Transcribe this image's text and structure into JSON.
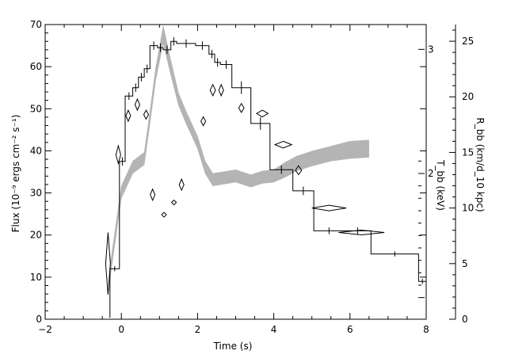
{
  "chart_data": {
    "type": "line",
    "title": "",
    "xlabel": "Time (s)",
    "ylabel": "Flux (10⁻⁹ ergs cm⁻² s⁻¹)",
    "y2label": "T_bb (keV)",
    "y3label": "R_bb (km/d_10 kpc)",
    "xlim": [
      -2,
      8
    ],
    "ylim": [
      0,
      70
    ],
    "y2lim": [
      0.8,
      3.2
    ],
    "y3lim": [
      0,
      26.5
    ],
    "x_ticks": [
      -2,
      0,
      2,
      4,
      6,
      8
    ],
    "y_ticks": [
      0,
      10,
      20,
      30,
      40,
      50,
      60,
      70
    ],
    "y2_ticks": [
      1,
      2,
      3
    ],
    "y2_tick_labels": [
      "",
      "2",
      "3"
    ],
    "y3_ticks": [
      0,
      5,
      10,
      15,
      20,
      25
    ],
    "grid": false,
    "series": [
      {
        "style": "histogram",
        "color": "#000000",
        "bins": [
          {
            "x0": -0.3,
            "x1": -0.05,
            "y": 12.0,
            "err": 0.6
          },
          {
            "x0": -0.05,
            "x1": 0.1,
            "y": 37.5,
            "err": 1.0
          },
          {
            "x0": 0.1,
            "x1": 0.3,
            "y": 53.0,
            "err": 0.9
          },
          {
            "x0": 0.3,
            "x1": 0.45,
            "y": 55.0,
            "err": 1.0
          },
          {
            "x0": 0.45,
            "x1": 0.6,
            "y": 57.5,
            "err": 1.0
          },
          {
            "x0": 0.6,
            "x1": 0.75,
            "y": 59.5,
            "err": 1.0
          },
          {
            "x0": 0.75,
            "x1": 0.95,
            "y": 65.0,
            "err": 1.0
          },
          {
            "x0": 0.95,
            "x1": 1.1,
            "y": 64.5,
            "err": 1.0
          },
          {
            "x0": 1.1,
            "x1": 1.3,
            "y": 64.0,
            "err": 1.0
          },
          {
            "x0": 1.3,
            "x1": 1.45,
            "y": 66.0,
            "err": 1.0
          },
          {
            "x0": 1.45,
            "x1": 1.95,
            "y": 65.5,
            "err": 1.0
          },
          {
            "x0": 1.95,
            "x1": 2.3,
            "y": 65.0,
            "err": 1.0
          },
          {
            "x0": 2.3,
            "x1": 2.45,
            "y": 63.0,
            "err": 1.0
          },
          {
            "x0": 2.45,
            "x1": 2.6,
            "y": 61.0,
            "err": 1.0
          },
          {
            "x0": 2.6,
            "x1": 2.9,
            "y": 60.5,
            "err": 1.0
          },
          {
            "x0": 2.9,
            "x1": 3.4,
            "y": 55.0,
            "err": 1.5
          },
          {
            "x0": 3.4,
            "x1": 3.9,
            "y": 46.5,
            "err": 1.5
          },
          {
            "x0": 3.9,
            "x1": 4.5,
            "y": 35.5,
            "err": 1.0
          },
          {
            "x0": 4.5,
            "x1": 5.05,
            "y": 30.5,
            "err": 1.0
          },
          {
            "x0": 5.05,
            "x1": 5.85,
            "y": 21.0,
            "err": 0.8
          },
          {
            "x0": 5.85,
            "x1": 6.55,
            "y": 21.0,
            "err": 0.8
          },
          {
            "x0": 6.55,
            "x1": 7.8,
            "y": 15.5,
            "err": 0.6
          },
          {
            "x0": 7.8,
            "x1": 8.0,
            "y": 9.0,
            "err": 0.6
          }
        ],
        "lead_in": {
          "x": -0.32,
          "y": 0.5
        }
      },
      {
        "style": "band",
        "color": "#b4b4b4",
        "axis": "y2",
        "x": [
          -0.3,
          0.0,
          0.3,
          0.6,
          0.75,
          0.9,
          1.1,
          1.3,
          1.5,
          1.7,
          2.0,
          2.2,
          2.4,
          2.6,
          3.0,
          3.4,
          3.7,
          4.0,
          4.3,
          4.6,
          5.0,
          5.5,
          6.0,
          6.5
        ],
        "y": [
          1.2,
          1.85,
          2.05,
          2.12,
          2.45,
          2.8,
          3.12,
          2.85,
          2.6,
          2.45,
          2.25,
          2.05,
          1.95,
          1.96,
          1.98,
          1.94,
          1.97,
          1.98,
          2.03,
          2.08,
          2.12,
          2.16,
          2.19,
          2.2
        ],
        "width": [
          0.05,
          0.05,
          0.05,
          0.05,
          0.05,
          0.05,
          0.07,
          0.06,
          0.05,
          0.05,
          0.05,
          0.05,
          0.05,
          0.05,
          0.05,
          0.05,
          0.05,
          0.05,
          0.06,
          0.06,
          0.06,
          0.06,
          0.07,
          0.07
        ]
      },
      {
        "style": "diamonds",
        "color": "#000000",
        "axis": "y3",
        "points": [
          {
            "x": -0.35,
            "y": 5.0,
            "xerr": 0.05,
            "yerr": 2.8
          },
          {
            "x": -0.08,
            "y": 14.8,
            "xerr": 0.06,
            "yerr": 0.8
          },
          {
            "x": 0.18,
            "y": 18.3,
            "xerr": 0.05,
            "yerr": 0.5
          },
          {
            "x": 0.42,
            "y": 19.3,
            "xerr": 0.05,
            "yerr": 0.5
          },
          {
            "x": 0.65,
            "y": 18.4,
            "xerr": 0.06,
            "yerr": 0.4
          },
          {
            "x": 0.82,
            "y": 11.2,
            "xerr": 0.03,
            "yerr": 0.5
          },
          {
            "x": 1.12,
            "y": 9.4,
            "xerr": 0.06,
            "yerr": 0.2
          },
          {
            "x": 1.38,
            "y": 10.5,
            "xerr": 0.06,
            "yerr": 0.2
          },
          {
            "x": 1.58,
            "y": 12.1,
            "xerr": 0.03,
            "yerr": 0.5
          },
          {
            "x": 2.15,
            "y": 17.8,
            "xerr": 0.06,
            "yerr": 0.4
          },
          {
            "x": 2.4,
            "y": 20.6,
            "xerr": 0.07,
            "yerr": 0.5
          },
          {
            "x": 2.62,
            "y": 20.6,
            "xerr": 0.06,
            "yerr": 0.5
          },
          {
            "x": 3.15,
            "y": 19.0,
            "xerr": 0.07,
            "yerr": 0.4
          },
          {
            "x": 3.7,
            "y": 18.5,
            "xerr": 0.15,
            "yerr": 0.3
          },
          {
            "x": 4.25,
            "y": 15.7,
            "xerr": 0.22,
            "yerr": 0.3
          },
          {
            "x": 4.65,
            "y": 13.4,
            "xerr": 0.08,
            "yerr": 0.4
          },
          {
            "x": 5.45,
            "y": 10.0,
            "xerr": 0.45,
            "yerr": 0.25
          },
          {
            "x": 6.3,
            "y": 7.8,
            "xerr": 0.6,
            "yerr": 0.2
          }
        ]
      }
    ]
  }
}
